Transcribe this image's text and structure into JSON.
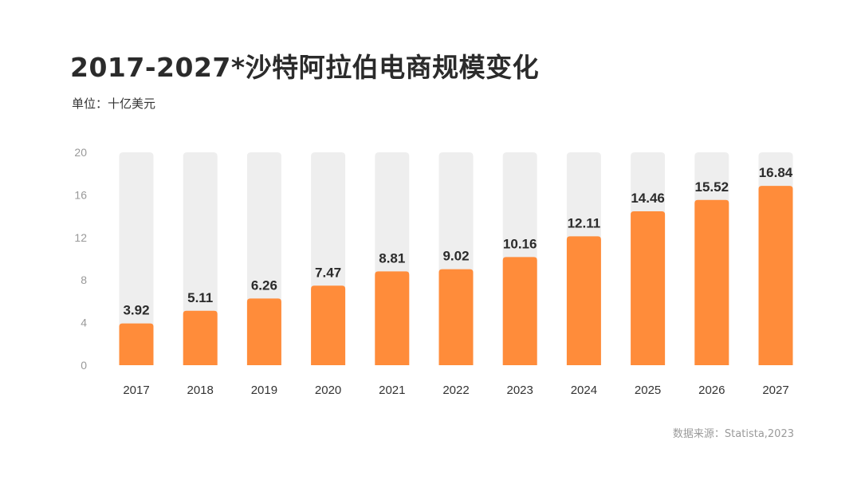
{
  "title": "2017-2027*沙特阿拉伯电商规模变化",
  "unit_label": "单位：十亿美元",
  "source": "数据来源：Statista,2023",
  "colors": {
    "bar": "#ff8c3a",
    "track": "#eeeeee",
    "axis_text": "#999999",
    "label_text": "#2b2b2b"
  },
  "chart_data": {
    "type": "bar",
    "categories": [
      "2017",
      "2018",
      "2019",
      "2020",
      "2021",
      "2022",
      "2023",
      "2024",
      "2025",
      "2026",
      "2027"
    ],
    "values": [
      3.92,
      5.11,
      6.26,
      7.47,
      8.81,
      9.02,
      10.16,
      12.11,
      14.46,
      15.52,
      16.84
    ],
    "value_labels": [
      "3.92",
      "5.11",
      "6.26",
      "7.47",
      "8.81",
      "9.02",
      "10.16",
      "12.11",
      "14.46",
      "15.52",
      "16.84"
    ],
    "yticks": [
      "0",
      "4",
      "8",
      "12",
      "16",
      "20"
    ],
    "ytick_values": [
      0,
      4,
      8,
      12,
      16,
      20
    ],
    "ylim": [
      0,
      20
    ],
    "grid": false,
    "xlabel": "",
    "ylabel": ""
  }
}
